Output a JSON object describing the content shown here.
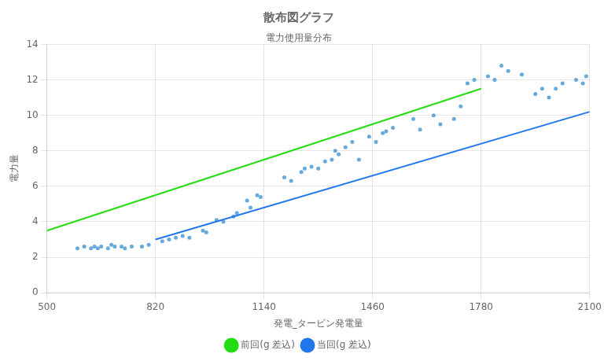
{
  "chart_data": {
    "type": "scatter",
    "title": "散布図グラフ",
    "subtitle": "電力使用量分布",
    "xlabel": "発電_タービン発電量",
    "ylabel": "電力量",
    "xlim": [
      500,
      2100
    ],
    "ylim": [
      0,
      14
    ],
    "xticks": [
      500,
      820,
      1140,
      1460,
      1780,
      2100
    ],
    "yticks": [
      0,
      2,
      4,
      6,
      8,
      10,
      12,
      14
    ],
    "grid": true,
    "legend": "bottom",
    "series": [
      {
        "type": "scatter",
        "color": "#66aadd",
        "marker": "circle",
        "x": [
          590,
          610,
          630,
          640,
          650,
          660,
          680,
          690,
          700,
          720,
          730,
          750,
          780,
          800,
          840,
          860,
          880,
          900,
          920,
          960,
          970,
          1000,
          1020,
          1050,
          1060,
          1090,
          1100,
          1120,
          1130,
          1200,
          1220,
          1250,
          1260,
          1280,
          1300,
          1320,
          1340,
          1350,
          1360,
          1380,
          1400,
          1420,
          1450,
          1470,
          1490,
          1500,
          1520,
          1580,
          1600,
          1640,
          1660,
          1700,
          1720,
          1740,
          1760,
          1800,
          1820,
          1840,
          1860,
          1900,
          1940,
          1960,
          1980,
          2000,
          2020,
          2060,
          2080,
          2090
        ],
        "values": [
          2.5,
          2.6,
          2.5,
          2.6,
          2.5,
          2.6,
          2.5,
          2.7,
          2.6,
          2.6,
          2.5,
          2.6,
          2.6,
          2.7,
          2.9,
          3.0,
          3.1,
          3.2,
          3.1,
          3.5,
          3.4,
          4.1,
          4.0,
          4.3,
          4.5,
          5.2,
          4.8,
          5.5,
          5.4,
          6.5,
          6.3,
          6.8,
          7.0,
          7.1,
          7.0,
          7.4,
          7.5,
          8.0,
          7.8,
          8.2,
          8.5,
          7.5,
          8.8,
          8.5,
          9.0,
          9.1,
          9.3,
          9.8,
          9.2,
          10.0,
          9.5,
          9.8,
          10.5,
          11.8,
          12.0,
          12.2,
          12.0,
          12.8,
          12.5,
          12.3,
          11.2,
          11.5,
          11.0,
          11.5,
          11.8,
          12.0,
          11.8,
          12.2
        ]
      },
      {
        "type": "line",
        "name": "前回(g 差込)",
        "color": "#22dd11",
        "x": [
          500,
          1780
        ],
        "values": [
          3.5,
          11.5
        ]
      },
      {
        "type": "line",
        "name": "当回(g 差込)",
        "color": "#2277ee",
        "x": [
          820,
          2100
        ],
        "values": [
          3.0,
          10.2
        ]
      }
    ]
  }
}
